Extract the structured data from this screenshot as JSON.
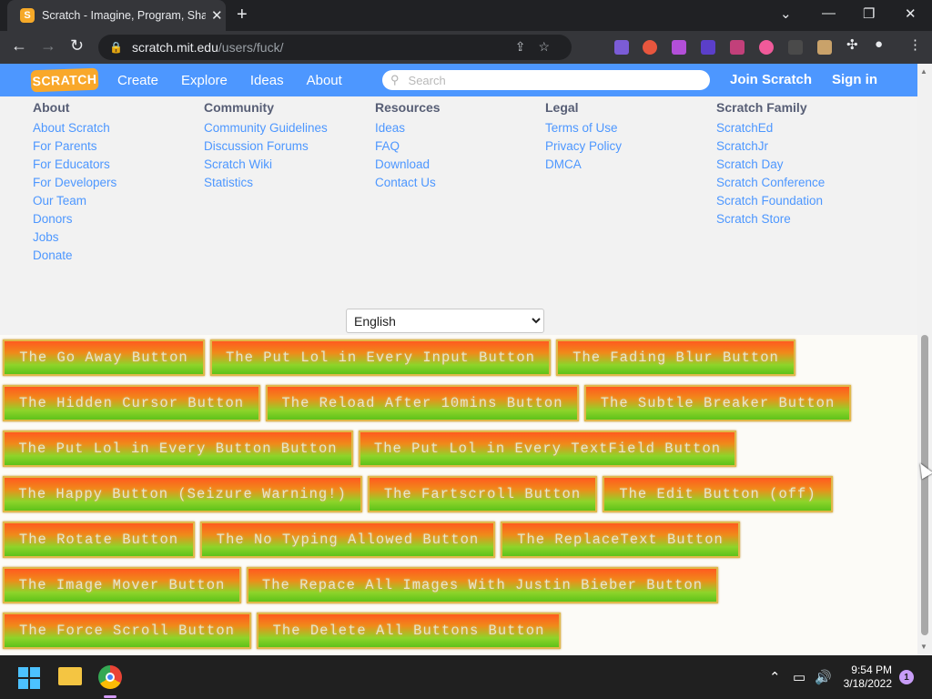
{
  "browser": {
    "tab_title": "Scratch - Imagine, Program, Share",
    "url_domain": "scratch.mit.edu",
    "url_path": "/users/fuck/"
  },
  "scratch_nav": {
    "logo": "SCRATCH",
    "links": [
      "Create",
      "Explore",
      "Ideas",
      "About"
    ],
    "search_placeholder": "Search",
    "join": "Join Scratch",
    "signin": "Sign in"
  },
  "footer": {
    "columns": [
      {
        "title": "About",
        "links": [
          "About Scratch",
          "For Parents",
          "For Educators",
          "For Developers",
          "Our Team",
          "Donors",
          "Jobs",
          "Donate"
        ]
      },
      {
        "title": "Community",
        "links": [
          "Community Guidelines",
          "Discussion Forums",
          "Scratch Wiki",
          "Statistics"
        ]
      },
      {
        "title": "Resources",
        "links": [
          "Ideas",
          "FAQ",
          "Download",
          "Contact Us"
        ]
      },
      {
        "title": "Legal",
        "links": [
          "Terms of Use",
          "Privacy Policy",
          "DMCA"
        ]
      },
      {
        "title": "Scratch Family",
        "links": [
          "ScratchEd",
          "ScratchJr",
          "Scratch Day",
          "Scratch Conference",
          "Scratch Foundation",
          "Scratch Store"
        ]
      }
    ],
    "language": "English"
  },
  "buttons": [
    [
      "The Go Away Button",
      "The Put Lol in Every Input Button",
      "The Fading Blur Button"
    ],
    [
      "The Hidden Cursor Button",
      "The Reload After 10mins Button",
      "The Subtle Breaker Button"
    ],
    [
      "The Put Lol in Every Button Button",
      "The Put Lol in Every TextField Button"
    ],
    [
      "The Happy Button (Seizure Warning!)",
      "The Fartscroll Button",
      "The Edit Button (off)"
    ],
    [
      "The Rotate Button",
      "The No Typing Allowed Button",
      "The ReplaceText Button"
    ],
    [
      "The Image Mover Button",
      "The Repace All Images With Justin Bieber Button"
    ],
    [
      "The Force Scroll Button",
      "The Delete All Buttons Button"
    ]
  ],
  "taskbar": {
    "time": "9:54 PM",
    "date": "3/18/2022",
    "notifications": "1"
  }
}
